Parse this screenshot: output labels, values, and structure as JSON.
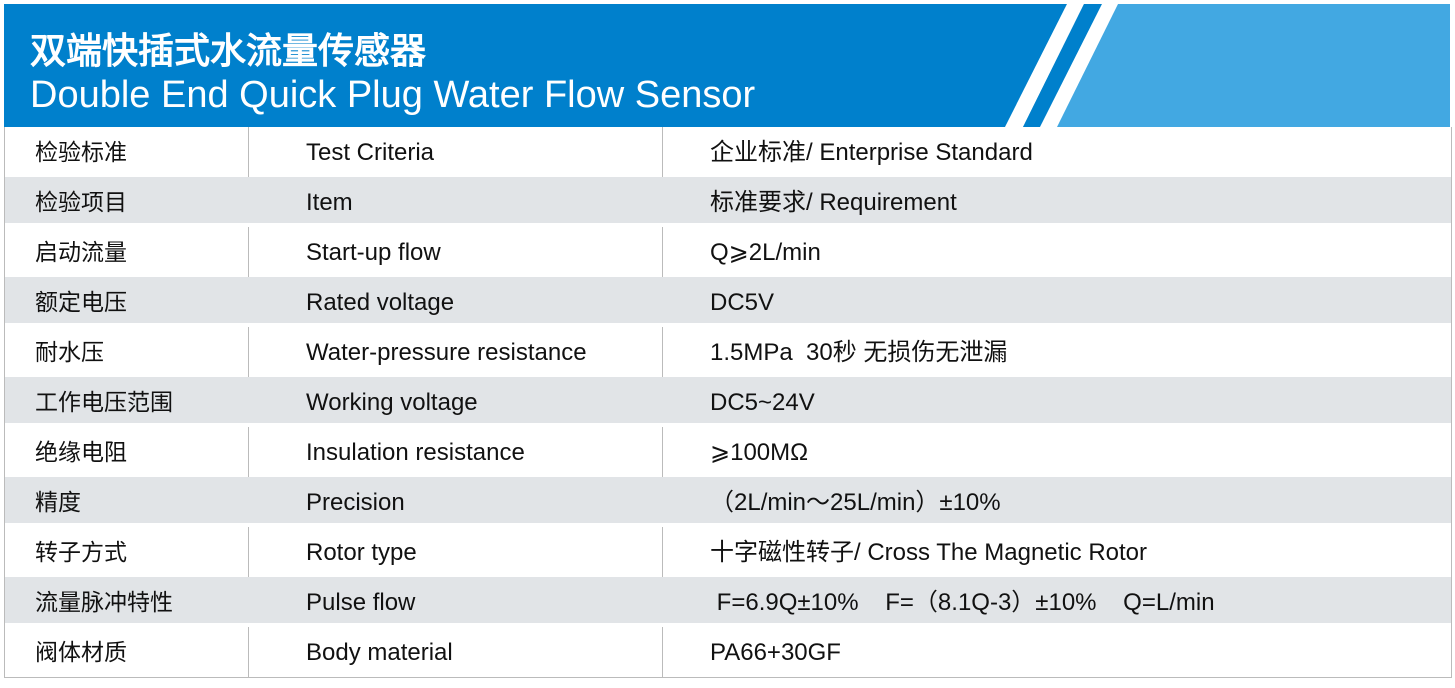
{
  "header": {
    "title_cn": "双端快插式水流量传感器",
    "title_en": "Double End Quick Plug Water Flow Sensor",
    "colors": {
      "dark": "#0080CC",
      "light": "#42A8E2"
    }
  },
  "rows": [
    {
      "cn": "检验标准",
      "en": "Test Criteria",
      "value": "企业标准/ Enterprise Standard"
    },
    {
      "cn": "检验项目",
      "en": "Item",
      "value": "标准要求/ Requirement"
    },
    {
      "cn": "启动流量",
      "en": "Start-up flow",
      "value": "Q⩾2L/min"
    },
    {
      "cn": "额定电压",
      "en": "Rated voltage",
      "value": "DC5V"
    },
    {
      "cn": "耐水压",
      "en": "Water-pressure resistance",
      "value": "1.5MPa  30秒 无损伤无泄漏"
    },
    {
      "cn": "工作电压范围",
      "en": "Working voltage",
      "value": "DC5~24V"
    },
    {
      "cn": "绝缘电阻",
      "en": "Insulation resistance",
      "value": "⩾100MΩ"
    },
    {
      "cn": "精度",
      "en": "Precision",
      "value": "（2L/min～25L/min）±10%"
    },
    {
      "cn": "转子方式",
      "en": "Rotor type",
      "value": "十字磁性转子/ Cross The Magnetic Rotor"
    },
    {
      "cn": "流量脉冲特性",
      "en": "Pulse flow",
      "value": " F=6.9Q±10%    F=（8.1Q-3）±10%    Q=L/min"
    },
    {
      "cn": "阀体材质",
      "en": "Body material",
      "value": "PA66+30GF"
    }
  ]
}
